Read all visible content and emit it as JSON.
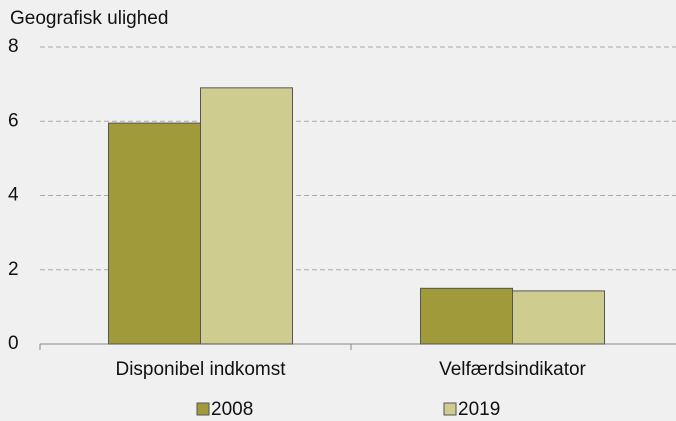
{
  "chart_data": {
    "type": "bar",
    "ylabel": "Geografisk ulighed",
    "categories": [
      "Disponibel indkomst",
      "Velfærdsindikator"
    ],
    "series": [
      {
        "name": "2008",
        "color": "#a09a3a",
        "values": [
          5.95,
          1.5
        ]
      },
      {
        "name": "2019",
        "color": "#cfcc90",
        "values": [
          6.9,
          1.43
        ]
      }
    ],
    "ylim": [
      0,
      8
    ],
    "yticks": [
      0,
      2,
      4,
      6,
      8
    ],
    "grid": true,
    "legend": "bottom"
  }
}
